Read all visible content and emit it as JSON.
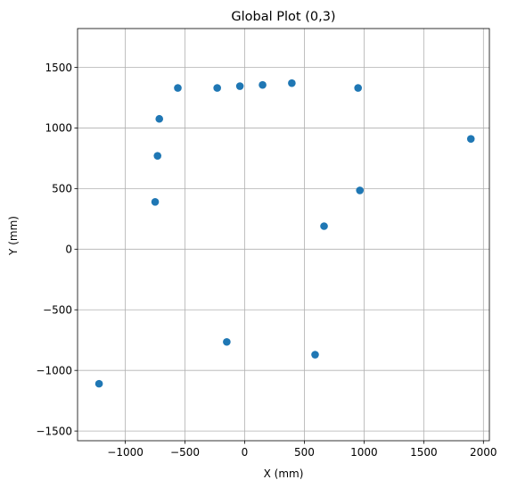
{
  "chart_data": {
    "type": "scatter",
    "title": "Global Plot (0,3)",
    "xlabel": "X (mm)",
    "ylabel": "Y (mm)",
    "xlim": [
      -1400,
      2050
    ],
    "ylim": [
      -1580,
      1820
    ],
    "xticks": [
      -1000,
      -500,
      0,
      500,
      1000,
      1500,
      2000
    ],
    "xtick_labels": [
      "−1000",
      "−500",
      "0",
      "500",
      "1000",
      "1500",
      "2000"
    ],
    "yticks": [
      -1500,
      -1000,
      -500,
      0,
      500,
      1000,
      1500
    ],
    "ytick_labels": [
      "−1500",
      "−1000",
      "−500",
      "0",
      "500",
      "1000",
      "1500"
    ],
    "grid": true,
    "marker_color": "#1f77b4",
    "grid_color": "#b0b0b0",
    "series": [
      {
        "points": [
          {
            "x": -1220,
            "y": -1110
          },
          {
            "x": -750,
            "y": 390
          },
          {
            "x": -730,
            "y": 770
          },
          {
            "x": -715,
            "y": 1075
          },
          {
            "x": -560,
            "y": 1330
          },
          {
            "x": -230,
            "y": 1330
          },
          {
            "x": -40,
            "y": 1345
          },
          {
            "x": 150,
            "y": 1355
          },
          {
            "x": 395,
            "y": 1370
          },
          {
            "x": 950,
            "y": 1330
          },
          {
            "x": 965,
            "y": 485
          },
          {
            "x": 665,
            "y": 190
          },
          {
            "x": -150,
            "y": -765
          },
          {
            "x": 590,
            "y": -870
          },
          {
            "x": 1895,
            "y": 910
          }
        ]
      }
    ]
  }
}
